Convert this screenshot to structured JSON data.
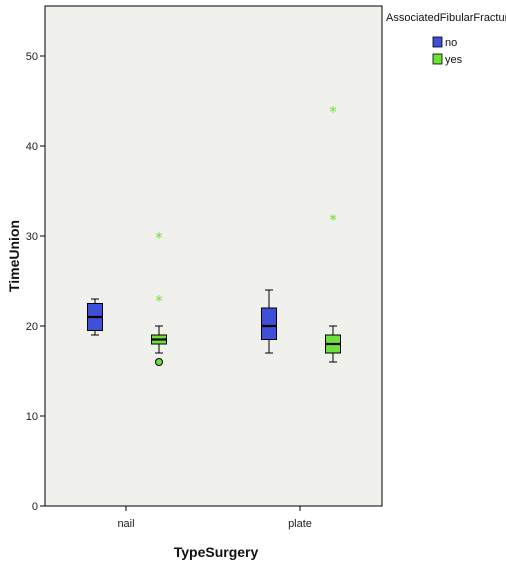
{
  "chart_data": {
    "type": "boxplot",
    "xlabel": "TypeSurgery",
    "ylabel": "TimeUnion",
    "ylim": [
      0,
      55
    ],
    "yticks": [
      0,
      10,
      20,
      30,
      40,
      50
    ],
    "grid": false,
    "legend_position": "top-right, outside plot",
    "categories": [
      "nail",
      "plate"
    ],
    "legend": {
      "title": "AssociatedFibularFracture"
    },
    "series": [
      {
        "name": "no",
        "color": "#3f4fd8",
        "boxes": [
          {
            "category": "nail",
            "whisker_low": 19,
            "q1": 19.5,
            "median": 21,
            "q3": 22.5,
            "whisker_high": 23,
            "outliers": [],
            "extremes": []
          },
          {
            "category": "plate",
            "whisker_low": 17,
            "q1": 18.5,
            "median": 20,
            "q3": 22,
            "whisker_high": 24,
            "outliers": [],
            "extremes": []
          }
        ]
      },
      {
        "name": "yes",
        "color": "#6ee03a",
        "boxes": [
          {
            "category": "nail",
            "whisker_low": 17,
            "q1": 18,
            "median": 18.5,
            "q3": 19,
            "whisker_high": 20,
            "outliers": [
              16
            ],
            "extremes": [
              23,
              30
            ]
          },
          {
            "category": "plate",
            "whisker_low": 16,
            "q1": 17,
            "median": 18,
            "q3": 19,
            "whisker_high": 20,
            "outliers": [],
            "extremes": [
              32,
              44
            ]
          }
        ]
      }
    ]
  }
}
